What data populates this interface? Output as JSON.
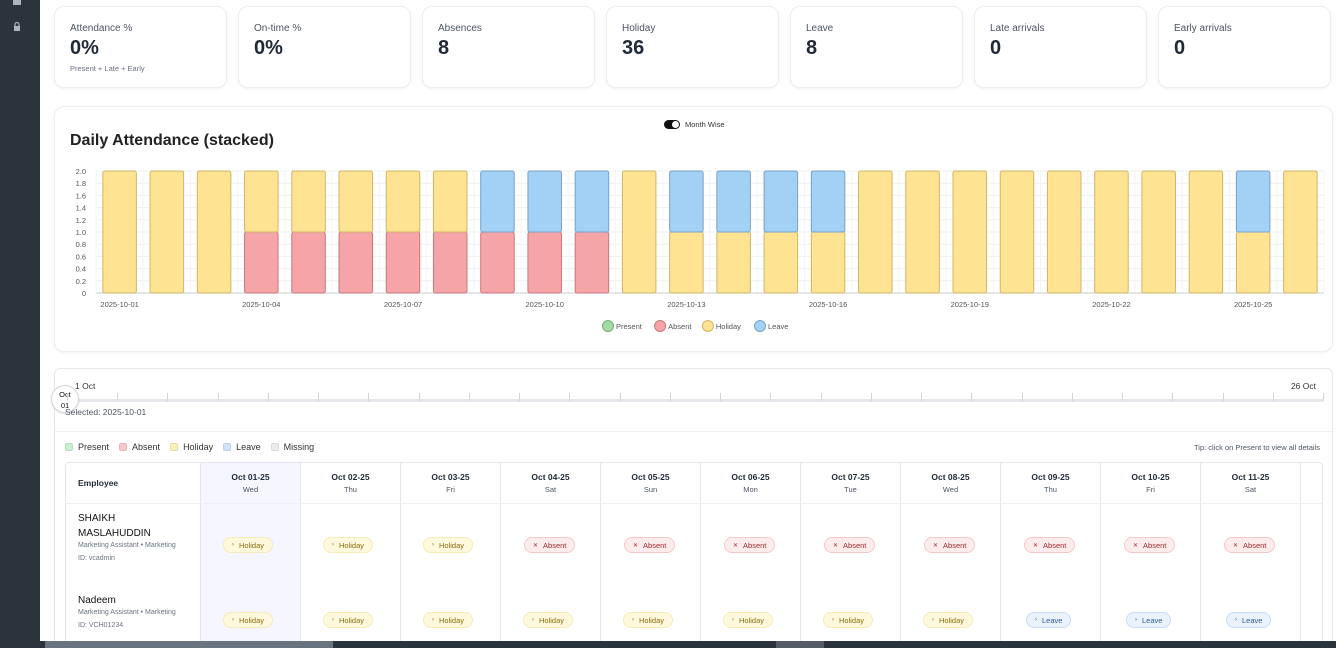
{
  "stats": [
    {
      "label": "Attendance %",
      "value": "0%",
      "sub": "Present + Late + Early"
    },
    {
      "label": "On-time %",
      "value": "0%",
      "sub": ""
    },
    {
      "label": "Absences",
      "value": "8",
      "sub": ""
    },
    {
      "label": "Holiday",
      "value": "36",
      "sub": ""
    },
    {
      "label": "Leave",
      "value": "8",
      "sub": ""
    },
    {
      "label": "Late arrivals",
      "value": "0",
      "sub": ""
    },
    {
      "label": "Early arrivals",
      "value": "0",
      "sub": ""
    }
  ],
  "toggle_label": "Month Wise",
  "chart_data": {
    "type": "bar",
    "stacked": true,
    "title": "Daily Attendance (stacked)",
    "categories": [
      "2025-10-01",
      "2025-10-02",
      "2025-10-03",
      "2025-10-04",
      "2025-10-05",
      "2025-10-06",
      "2025-10-07",
      "2025-10-08",
      "2025-10-09",
      "2025-10-10",
      "2025-10-11",
      "2025-10-12",
      "2025-10-13",
      "2025-10-14",
      "2025-10-15",
      "2025-10-16",
      "2025-10-17",
      "2025-10-18",
      "2025-10-19",
      "2025-10-20",
      "2025-10-21",
      "2025-10-22",
      "2025-10-23",
      "2025-10-24",
      "2025-10-25",
      "2025-10-26"
    ],
    "tick_labels": [
      "2025-10-01",
      "2025-10-04",
      "2025-10-07",
      "2025-10-10",
      "2025-10-13",
      "2025-10-16",
      "2025-10-19",
      "2025-10-22",
      "2025-10-25"
    ],
    "series": [
      {
        "name": "Present",
        "color": "#a3d9a5",
        "values": [
          0,
          0,
          0,
          0,
          0,
          0,
          0,
          0,
          0,
          0,
          0,
          0,
          0,
          0,
          0,
          0,
          0,
          0,
          0,
          0,
          0,
          0,
          0,
          0,
          0,
          0
        ]
      },
      {
        "name": "Absent",
        "color": "#f5a5a8",
        "values": [
          0,
          0,
          0,
          1,
          1,
          1,
          1,
          1,
          1,
          1,
          1,
          0,
          0,
          0,
          0,
          0,
          0,
          0,
          0,
          0,
          0,
          0,
          0,
          0,
          0,
          0
        ]
      },
      {
        "name": "Holiday",
        "color": "#fde392",
        "values": [
          2,
          2,
          2,
          1,
          1,
          1,
          1,
          1,
          0,
          0,
          0,
          2,
          1,
          1,
          1,
          1,
          2,
          2,
          2,
          2,
          2,
          2,
          2,
          2,
          1,
          2
        ]
      },
      {
        "name": "Leave",
        "color": "#a3d0f5",
        "values": [
          0,
          0,
          0,
          0,
          0,
          0,
          0,
          0,
          1,
          1,
          1,
          0,
          1,
          1,
          1,
          1,
          0,
          0,
          0,
          0,
          0,
          0,
          0,
          0,
          1,
          0
        ]
      }
    ],
    "y_ticks": [
      "0",
      "0.2",
      "0.4",
      "0.6",
      "0.8",
      "1.0",
      "1.2",
      "1.4",
      "1.6",
      "1.8",
      "2.0"
    ],
    "ylim": [
      0,
      2
    ],
    "legend": "bottom"
  },
  "slider": {
    "start": "1 Oct",
    "end": "26 Oct",
    "knob_line1": "Oct",
    "knob_line2": "01",
    "selected": "Selected: 2025-10-01"
  },
  "legend2": [
    {
      "label": "Present",
      "color": "#c8efcf"
    },
    {
      "label": "Absent",
      "color": "#f9c9c9"
    },
    {
      "label": "Holiday",
      "color": "#fdf0b5"
    },
    {
      "label": "Leave",
      "color": "#cfe3f8"
    },
    {
      "label": "Missing",
      "color": "#ececec"
    }
  ],
  "tip": "Tip: click on Present to view all details",
  "table": {
    "employee_header": "Employee",
    "days": [
      {
        "date": "Oct 01-25",
        "dow": "Wed"
      },
      {
        "date": "Oct 02-25",
        "dow": "Thu"
      },
      {
        "date": "Oct 03-25",
        "dow": "Fri"
      },
      {
        "date": "Oct 04-25",
        "dow": "Sat"
      },
      {
        "date": "Oct 05-25",
        "dow": "Sun"
      },
      {
        "date": "Oct 06-25",
        "dow": "Mon"
      },
      {
        "date": "Oct 07-25",
        "dow": "Tue"
      },
      {
        "date": "Oct 08-25",
        "dow": "Wed"
      },
      {
        "date": "Oct 09-25",
        "dow": "Thu"
      },
      {
        "date": "Oct 10-25",
        "dow": "Fri"
      },
      {
        "date": "Oct 11-25",
        "dow": "Sat"
      }
    ],
    "rows": [
      {
        "name": "SHAIKH MASLAHUDDIN",
        "role": "Marketing Assistant • Marketing",
        "id": "ID: vcadmin",
        "statuses": [
          "Holiday",
          "Holiday",
          "Holiday",
          "Absent",
          "Absent",
          "Absent",
          "Absent",
          "Absent",
          "Absent",
          "Absent",
          "Absent"
        ]
      },
      {
        "name": "Nadeem",
        "role": "Marketing Assistant • Marketing",
        "id": "ID: VCH01234",
        "statuses": [
          "Holiday",
          "Holiday",
          "Holiday",
          "Holiday",
          "Holiday",
          "Holiday",
          "Holiday",
          "Holiday",
          "Leave",
          "Leave",
          "Leave"
        ]
      }
    ]
  }
}
